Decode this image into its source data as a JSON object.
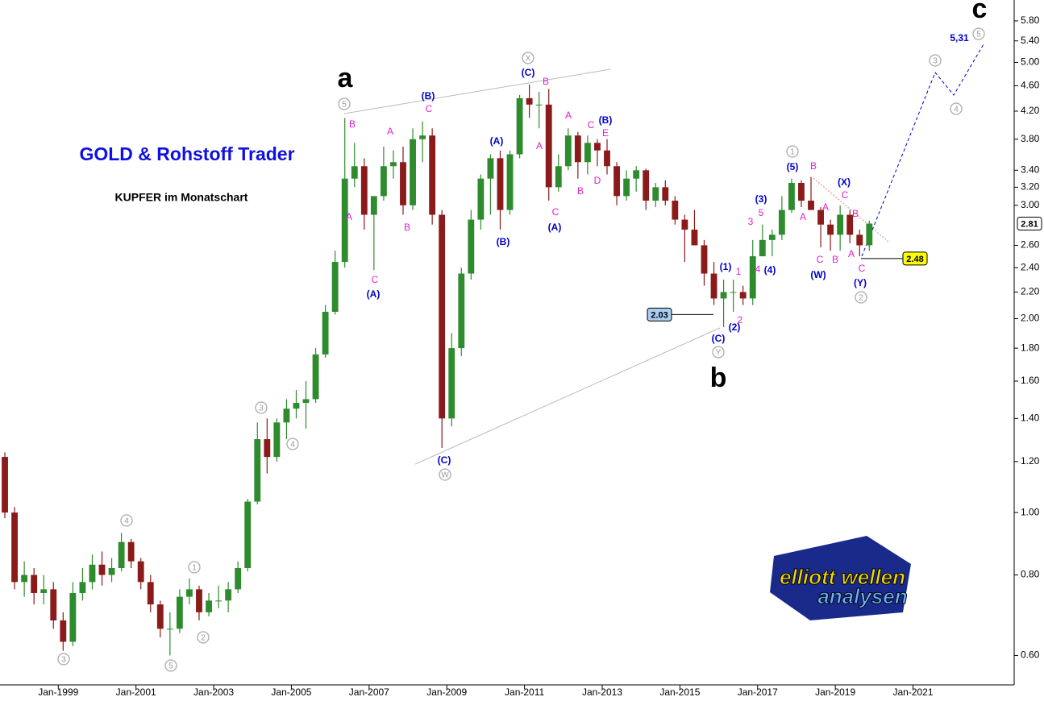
{
  "chart_data": {
    "type": "candlestick",
    "title": "GOLD & Rohstoff Trader",
    "subtitle": "KUPFER im Monatschart",
    "up_color": "#2e8b2e",
    "down_color": "#8b1a1a",
    "x": [
      "Jul-1997",
      "Oct-1997",
      "Jan-1998",
      "Apr-1998",
      "Jul-1998",
      "Oct-1998",
      "Jan-1999",
      "Apr-1999",
      "Jul-1999",
      "Oct-1999",
      "Jan-2000",
      "Apr-2000",
      "Jul-2000",
      "Oct-2000",
      "Jan-2001",
      "Apr-2001",
      "Jul-2001",
      "Oct-2001",
      "Jan-2002",
      "Apr-2002",
      "Jul-2002",
      "Oct-2002",
      "Jan-2003",
      "Apr-2003",
      "Jul-2003",
      "Oct-2003",
      "Jan-2004",
      "Apr-2004",
      "Jul-2004",
      "Oct-2004",
      "Jan-2005",
      "Apr-2005",
      "Jul-2005",
      "Oct-2005",
      "Jan-2006",
      "Apr-2006",
      "Jul-2006",
      "Oct-2006",
      "Jan-2007",
      "Apr-2007",
      "Jul-2007",
      "Oct-2007",
      "Jan-2008",
      "Apr-2008",
      "Jul-2008",
      "Oct-2008",
      "Jan-2009",
      "Apr-2009",
      "Jul-2009",
      "Oct-2009",
      "Jan-2010",
      "Apr-2010",
      "Jul-2010",
      "Oct-2010",
      "Jan-2011",
      "Apr-2011",
      "Jul-2011",
      "Oct-2011",
      "Jan-2012",
      "Apr-2012",
      "Jul-2012",
      "Oct-2012",
      "Jan-2013",
      "Apr-2013",
      "Jul-2013",
      "Oct-2013",
      "Jan-2014",
      "Apr-2014",
      "Jul-2014",
      "Oct-2014",
      "Jan-2015",
      "Apr-2015",
      "Jul-2015",
      "Oct-2015",
      "Jan-2016",
      "Apr-2016",
      "Jul-2016",
      "Oct-2016",
      "Jan-2017",
      "Apr-2017",
      "Jul-2017",
      "Oct-2017",
      "Jan-2018",
      "Apr-2018",
      "Jul-2018",
      "Oct-2018",
      "Jan-2019",
      "Apr-2019",
      "Jul-2019",
      "Oct-2019"
    ],
    "open": [
      1.22,
      1.0,
      0.78,
      0.8,
      0.75,
      0.76,
      0.68,
      0.63,
      0.75,
      0.78,
      0.83,
      0.8,
      0.82,
      0.9,
      0.84,
      0.78,
      0.72,
      0.66,
      0.66,
      0.74,
      0.76,
      0.7,
      0.73,
      0.73,
      0.76,
      0.82,
      1.04,
      1.3,
      1.22,
      1.38,
      1.45,
      1.48,
      1.5,
      1.76,
      2.05,
      2.45,
      3.3,
      3.45,
      2.9,
      3.1,
      3.45,
      3.5,
      3.0,
      3.8,
      3.85,
      2.9,
      1.4,
      1.8,
      2.35,
      2.85,
      3.3,
      3.55,
      2.95,
      3.6,
      4.4,
      4.3,
      4.3,
      3.2,
      3.45,
      3.85,
      3.5,
      3.75,
      3.65,
      3.45,
      3.1,
      3.3,
      3.4,
      3.05,
      3.2,
      3.05,
      2.85,
      2.75,
      2.6,
      2.35,
      2.15,
      2.2,
      2.2,
      2.15,
      2.5,
      2.65,
      2.7,
      2.95,
      3.25,
      3.05,
      2.95,
      2.8,
      2.7,
      2.9,
      2.7,
      2.6
    ],
    "high": [
      1.24,
      1.02,
      0.84,
      0.82,
      0.8,
      0.78,
      0.7,
      0.78,
      0.82,
      0.86,
      0.87,
      0.85,
      0.93,
      0.91,
      0.85,
      0.8,
      0.73,
      0.7,
      0.76,
      0.79,
      0.77,
      0.75,
      0.77,
      0.78,
      0.84,
      1.05,
      1.38,
      1.4,
      1.4,
      1.5,
      1.55,
      1.6,
      1.8,
      2.1,
      2.55,
      4.1,
      3.75,
      3.55,
      3.1,
      3.7,
      3.65,
      3.7,
      3.95,
      4.05,
      3.95,
      2.95,
      1.9,
      2.4,
      2.95,
      3.35,
      3.6,
      3.65,
      3.65,
      4.45,
      4.62,
      4.5,
      4.55,
      3.6,
      3.95,
      3.9,
      3.85,
      3.8,
      3.8,
      3.5,
      3.4,
      3.45,
      3.42,
      3.25,
      3.28,
      3.1,
      2.9,
      2.95,
      2.65,
      2.45,
      2.3,
      2.3,
      2.25,
      2.65,
      2.8,
      2.75,
      3.1,
      3.3,
      3.28,
      3.32,
      2.98,
      2.85,
      3.0,
      2.95,
      2.75,
      2.84
    ],
    "low": [
      0.98,
      0.76,
      0.74,
      0.72,
      0.72,
      0.66,
      0.61,
      0.62,
      0.73,
      0.76,
      0.77,
      0.78,
      0.81,
      0.82,
      0.76,
      0.7,
      0.64,
      0.6,
      0.65,
      0.72,
      0.68,
      0.69,
      0.71,
      0.7,
      0.75,
      0.81,
      1.03,
      1.15,
      1.2,
      1.3,
      1.4,
      1.35,
      1.48,
      1.74,
      2.03,
      2.4,
      3.2,
      2.75,
      2.38,
      3.05,
      3.3,
      2.9,
      2.95,
      3.5,
      2.8,
      1.26,
      1.36,
      1.75,
      2.3,
      2.75,
      2.9,
      2.75,
      2.9,
      3.55,
      4.1,
      3.95,
      3.05,
      3.15,
      3.4,
      3.3,
      3.35,
      3.45,
      3.35,
      3.0,
      3.05,
      3.15,
      2.95,
      2.98,
      3.0,
      2.8,
      2.45,
      2.6,
      2.25,
      2.1,
      1.94,
      2.05,
      2.1,
      2.1,
      2.5,
      2.5,
      2.65,
      2.92,
      2.98,
      2.95,
      2.58,
      2.55,
      2.55,
      2.62,
      2.5,
      2.55
    ],
    "close": [
      1.0,
      0.78,
      0.8,
      0.75,
      0.76,
      0.68,
      0.63,
      0.75,
      0.78,
      0.83,
      0.8,
      0.82,
      0.9,
      0.84,
      0.78,
      0.72,
      0.66,
      0.66,
      0.74,
      0.76,
      0.7,
      0.73,
      0.73,
      0.76,
      0.82,
      1.04,
      1.3,
      1.22,
      1.38,
      1.45,
      1.48,
      1.5,
      1.76,
      2.05,
      2.45,
      3.3,
      3.45,
      2.9,
      3.1,
      3.45,
      3.5,
      3.0,
      3.8,
      3.85,
      2.9,
      1.4,
      1.8,
      2.35,
      2.85,
      3.3,
      3.55,
      2.95,
      3.6,
      4.4,
      4.3,
      4.3,
      3.2,
      3.45,
      3.85,
      3.5,
      3.75,
      3.65,
      3.45,
      3.1,
      3.3,
      3.4,
      3.05,
      3.2,
      3.05,
      2.85,
      2.75,
      2.6,
      2.35,
      2.15,
      2.2,
      2.2,
      2.15,
      2.5,
      2.65,
      2.7,
      2.95,
      3.25,
      3.05,
      2.95,
      2.8,
      2.7,
      2.9,
      2.7,
      2.6,
      2.81
    ],
    "xlim": [
      "Jul-1997",
      "Jul-2023"
    ],
    "xticks": [
      "Jan-1999",
      "Jan-2001",
      "Jan-2003",
      "Jan-2005",
      "Jan-2007",
      "Jan-2009",
      "Jan-2011",
      "Jan-2013",
      "Jan-2015",
      "Jan-2017",
      "Jan-2019",
      "Jan-2021"
    ],
    "ylim": [
      0.54,
      6.25
    ],
    "log_scale": true,
    "yticks": [
      {
        "value": 0.6,
        "label": "0.60"
      },
      {
        "value": 0.8,
        "label": "0.80"
      },
      {
        "value": 1,
        "label": "1.00"
      },
      {
        "value": 1.2,
        "label": "1.20"
      },
      {
        "value": 1.4,
        "label": "1.40"
      },
      {
        "value": 1.6,
        "label": "1.60"
      },
      {
        "value": 1.8,
        "label": "1.80"
      },
      {
        "value": 2,
        "label": "2.00"
      },
      {
        "value": 2.2,
        "label": "2.20"
      },
      {
        "value": 2.4,
        "label": "2.40"
      },
      {
        "value": 2.6,
        "label": "2.60"
      },
      {
        "value": 3,
        "label": "3.00"
      },
      {
        "value": 3.2,
        "label": "3.20"
      },
      {
        "value": 3.4,
        "label": "3.40"
      },
      {
        "value": 3.8,
        "label": "3.80"
      },
      {
        "value": 4.2,
        "label": "4.20"
      },
      {
        "value": 4.6,
        "label": "4.60"
      },
      {
        "value": 5,
        "label": "5.00"
      },
      {
        "value": 5.4,
        "label": "5.40"
      },
      {
        "value": 5.8,
        "label": "5.80"
      }
    ],
    "price_labels": [
      {
        "value": 2.03,
        "color": "#a8cdf0"
      },
      {
        "value": 2.48,
        "color": "#ffff00"
      },
      {
        "value": 2.81,
        "color": "#ffffff"
      }
    ],
    "annotations": [
      {
        "text": "a",
        "style": "big"
      },
      {
        "text": "b",
        "style": "big"
      },
      {
        "text": "c",
        "style": "big"
      },
      {
        "text": "5",
        "style": "circled"
      },
      {
        "text": "X",
        "style": "circled"
      },
      {
        "text": "W",
        "style": "circled"
      },
      {
        "text": "Y",
        "style": "circled"
      },
      {
        "text": "1",
        "style": "circled"
      },
      {
        "text": "2",
        "style": "circled"
      },
      {
        "text": "3",
        "style": "circled"
      },
      {
        "text": "4",
        "style": "circled"
      },
      {
        "text": "5",
        "style": "circled"
      },
      {
        "text": "3",
        "style": "circled"
      },
      {
        "text": "4",
        "style": "circled"
      },
      {
        "text": "3",
        "style": "circled"
      },
      {
        "text": "4",
        "style": "circled"
      },
      {
        "text": "5",
        "style": "circled"
      },
      {
        "text": "1",
        "style": "circled"
      },
      {
        "text": "2",
        "style": "circled"
      },
      {
        "text": "(B)",
        "style": "blue"
      },
      {
        "text": "(C)",
        "style": "blue"
      },
      {
        "text": "(A)",
        "style": "blue"
      },
      {
        "text": "(B)",
        "style": "blue"
      },
      {
        "text": "(A)",
        "style": "blue"
      },
      {
        "text": "(C)",
        "style": "blue"
      },
      {
        "text": "(B)",
        "style": "blue"
      },
      {
        "text": "(A)",
        "style": "blue"
      },
      {
        "text": "(C)",
        "style": "blue"
      },
      {
        "text": "(1)",
        "style": "blue"
      },
      {
        "text": "(2)",
        "style": "blue"
      },
      {
        "text": "(3)",
        "style": "blue"
      },
      {
        "text": "(4)",
        "style": "blue"
      },
      {
        "text": "(5)",
        "style": "blue"
      },
      {
        "text": "(X)",
        "style": "blue"
      },
      {
        "text": "(W)",
        "style": "blue"
      },
      {
        "text": "(Y)",
        "style": "blue"
      },
      {
        "text": "5,31",
        "style": "blue"
      },
      {
        "text": "B",
        "style": "magenta"
      },
      {
        "text": "A",
        "style": "magenta"
      },
      {
        "text": "C",
        "style": "magenta"
      },
      {
        "text": "A",
        "style": "magenta"
      },
      {
        "text": "B",
        "style": "magenta"
      },
      {
        "text": "C",
        "style": "magenta"
      },
      {
        "text": "A",
        "style": "magenta"
      },
      {
        "text": "B",
        "style": "magenta"
      },
      {
        "text": "C",
        "style": "magenta"
      },
      {
        "text": "A",
        "style": "magenta"
      },
      {
        "text": "C",
        "style": "magenta"
      },
      {
        "text": "E",
        "style": "magenta"
      },
      {
        "text": "B",
        "style": "magenta"
      },
      {
        "text": "D",
        "style": "magenta"
      },
      {
        "text": "1",
        "style": "magenta"
      },
      {
        "text": "2",
        "style": "magenta"
      },
      {
        "text": "3",
        "style": "magenta"
      },
      {
        "text": "5",
        "style": "magenta"
      },
      {
        "text": "4",
        "style": "magenta"
      },
      {
        "text": "B",
        "style": "magenta"
      },
      {
        "text": "A",
        "style": "magenta"
      },
      {
        "text": "C",
        "style": "magenta"
      },
      {
        "text": "A",
        "style": "magenta"
      },
      {
        "text": "B",
        "style": "magenta"
      },
      {
        "text": "C",
        "style": "magenta"
      },
      {
        "text": "B",
        "style": "magenta"
      },
      {
        "text": "A",
        "style": "magenta"
      },
      {
        "text": "C",
        "style": "magenta"
      }
    ],
    "logo": {
      "line1": "elliott wellen",
      "line2": "analysen"
    }
  }
}
